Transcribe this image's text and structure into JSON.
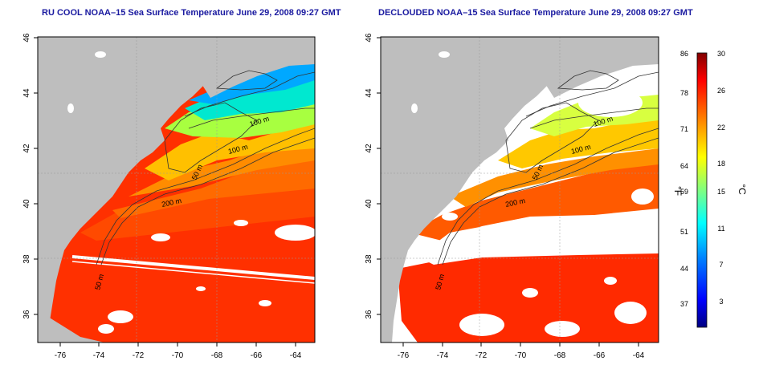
{
  "left_panel": {
    "title": "RU COOL NOAA–15 Sea Surface Temperature June 29, 2008 09:27 GMT"
  },
  "right_panel": {
    "title": "DECLOUDED NOAA–15 Sea Surface Temperature June 29, 2008 09:27 GMT"
  },
  "axes": {
    "lon_ticks": [
      "-76",
      "-74",
      "-72",
      "-70",
      "-68",
      "-66",
      "-64"
    ],
    "lat_ticks": [
      "36",
      "38",
      "40",
      "42",
      "44",
      "46"
    ],
    "lon_range": [
      -77,
      -63
    ],
    "lat_range": [
      35,
      46
    ]
  },
  "contour_labels": [
    "100 m",
    "100 m",
    "50 m",
    "200 m",
    "50 m"
  ],
  "colorbar": {
    "f_label": "°F",
    "c_label": "°C",
    "f_ticks": [
      "86",
      "78",
      "71",
      "64",
      "59",
      "51",
      "44",
      "37"
    ],
    "c_ticks": [
      "30",
      "26",
      "22",
      "18",
      "15",
      "11",
      "7",
      "3"
    ],
    "colors": [
      "#000080",
      "#0000ff",
      "#0080ff",
      "#00ffff",
      "#80ff80",
      "#ffff00",
      "#ff8000",
      "#ff0000",
      "#800000"
    ]
  },
  "colors": {
    "land": "#bebebe",
    "no_data": "#ffffff",
    "title": "#1a1aa0"
  }
}
